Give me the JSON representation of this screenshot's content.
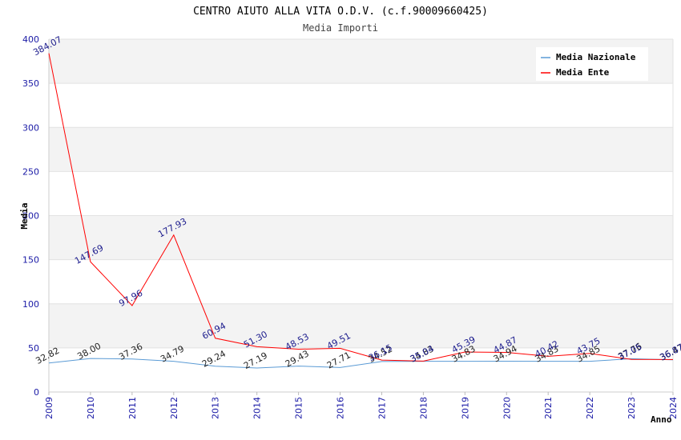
{
  "chart_data": {
    "type": "line",
    "title": "CENTRO AIUTO ALLA VITA O.D.V. (c.f.90009660425)",
    "subtitle": "Media Importi",
    "xlabel": "Anno",
    "ylabel": "Media",
    "ylim": [
      0,
      400
    ],
    "yticks": [
      "0",
      "50",
      "100",
      "150",
      "200",
      "250",
      "300",
      "350",
      "400"
    ],
    "x": [
      "2009",
      "2010",
      "2011",
      "2012",
      "2013",
      "2014",
      "2015",
      "2016",
      "2017",
      "2018",
      "2019",
      "2020",
      "2021",
      "2022",
      "2023",
      "2024"
    ],
    "legend_position": "top-right",
    "grid": true,
    "series": [
      {
        "name": "Media Nazionale",
        "color": "#5b9bd5",
        "values": [
          32.82,
          38.0,
          37.36,
          34.79,
          29.24,
          27.19,
          29.43,
          27.71,
          34.52,
          34.83,
          34.83,
          34.94,
          34.83,
          34.85,
          37.76,
          36.47
        ],
        "labels": [
          "32.82",
          "38.00",
          "37.36",
          "34.79",
          "29.24",
          "27.19",
          "29.43",
          "27.71",
          "34.52",
          "34.83",
          "34.83",
          "34.94",
          "34.83",
          "34.85",
          "37.76",
          "36.47"
        ]
      },
      {
        "name": "Media Ente",
        "color": "#ff0000",
        "values": [
          384.07,
          147.69,
          97.96,
          177.93,
          60.94,
          51.3,
          48.53,
          49.51,
          36.15,
          35.04,
          45.39,
          44.87,
          40.42,
          43.75,
          37.05,
          36.87
        ],
        "labels": [
          "384.07",
          "147.69",
          "97.96",
          "177.93",
          "60.94",
          "51.30",
          "48.53",
          "49.51",
          "36.15",
          "35.04",
          "45.39",
          "44.87",
          "40.42",
          "43.75",
          "37.05",
          "36.87"
        ]
      }
    ]
  }
}
